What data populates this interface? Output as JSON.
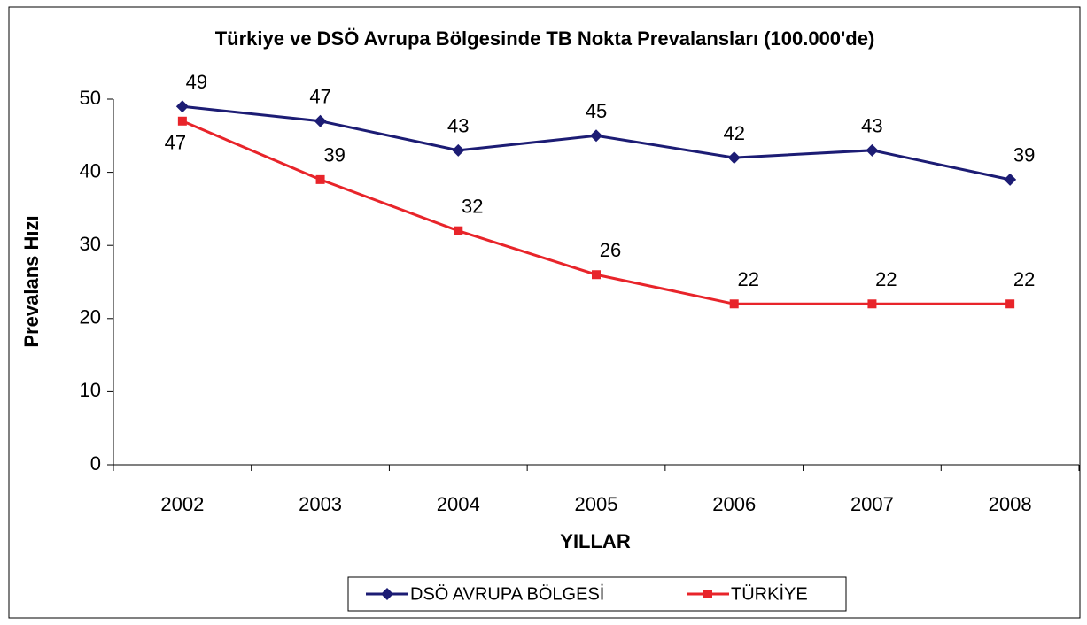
{
  "chart_data": {
    "type": "line",
    "title": "Türkiye ve DSÖ Avrupa Bölgesinde TB Nokta Prevalansları (100.000'de)",
    "x_label": "YILLAR",
    "y_label": "Prevalans Hızı",
    "categories": [
      "2002",
      "2003",
      "2004",
      "2005",
      "2006",
      "2007",
      "2008"
    ],
    "series": [
      {
        "name": "DSÖ AVRUPA BÖLGESİ",
        "color": "#1c1c74",
        "marker": "diamond",
        "values": [
          49,
          47,
          43,
          45,
          42,
          43,
          39
        ]
      },
      {
        "name": "TÜRKİYE",
        "color": "#e8242a",
        "marker": "square",
        "values": [
          47,
          39,
          32,
          26,
          22,
          22,
          22
        ]
      }
    ],
    "ylim": [
      0,
      50
    ],
    "yticks": [
      0,
      10,
      20,
      30,
      40,
      50
    ],
    "grid": false,
    "legend": "bottom"
  }
}
